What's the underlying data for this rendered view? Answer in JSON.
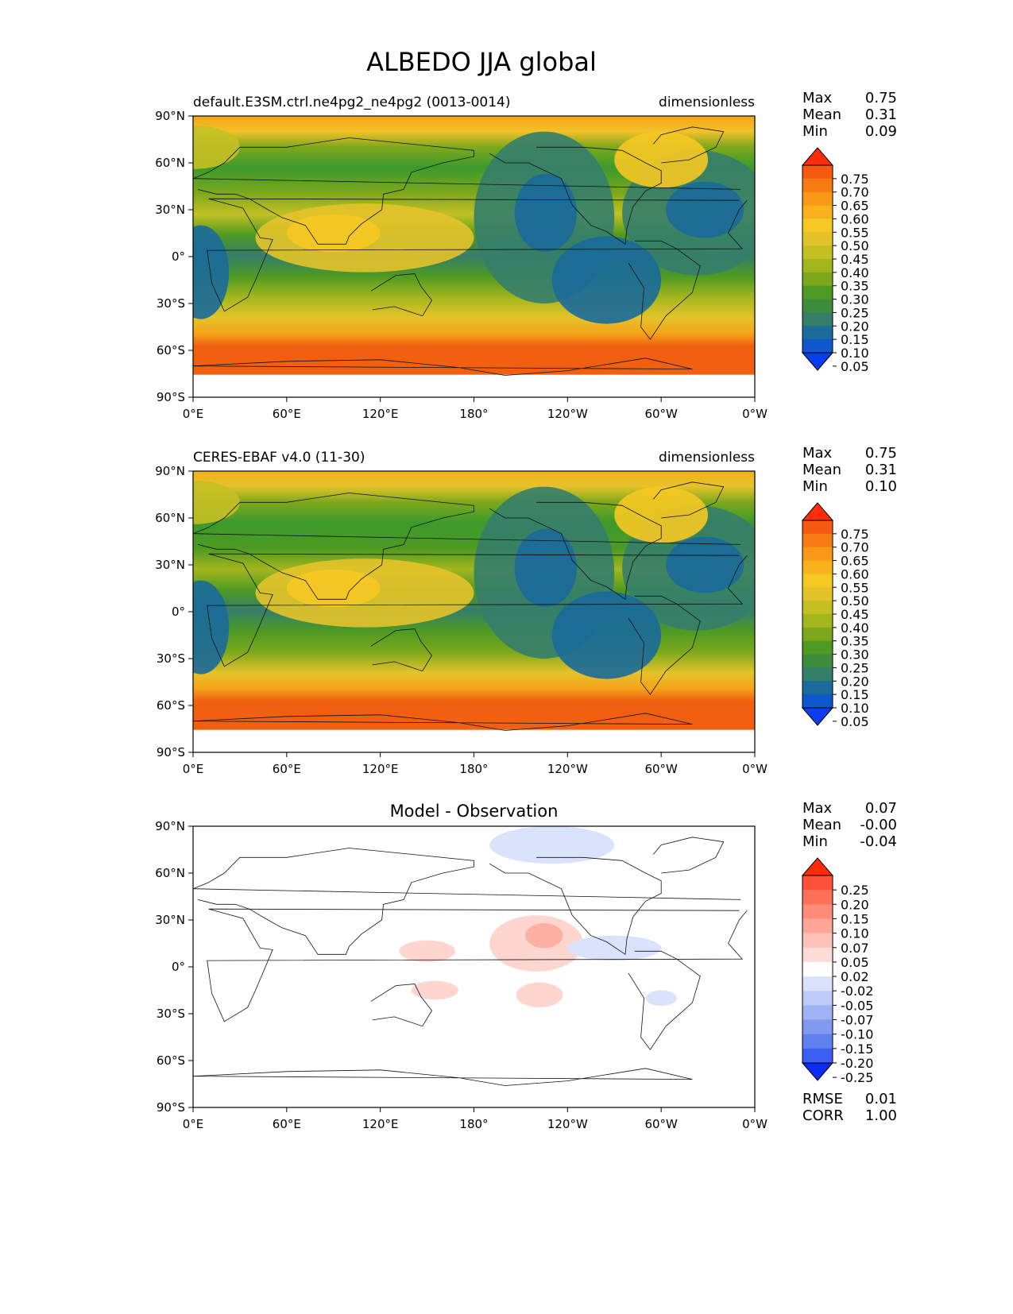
{
  "figure_title": "ALBEDO JJA global",
  "colors": {
    "ocean_teal": "#2f7d78",
    "mid_green": "#3c9a2c",
    "yellow_green": "#b8c223",
    "yellow": "#f2c22a",
    "orange": "#f59a12",
    "red_orange": "#f06010",
    "diff_red": "#ff9a8c",
    "diff_blue": "#a9bdf5"
  },
  "chart_data": [
    {
      "type": "heatmap",
      "title": "default.E3SM.ctrl.ne4pg2_ne4pg2 (0013-0014)",
      "units": "dimensionless",
      "xlim": [
        0,
        360
      ],
      "ylim": [
        -90,
        90
      ],
      "x_ticks": [
        "0°E",
        "60°E",
        "120°E",
        "180°",
        "120°W",
        "60°W",
        "0°W"
      ],
      "y_ticks": [
        "90°N",
        "60°N",
        "30°N",
        "0°",
        "30°S",
        "60°S",
        "90°S"
      ],
      "stats": [
        {
          "label": "Max",
          "value": "0.75"
        },
        {
          "label": "Mean",
          "value": "0.31"
        },
        {
          "label": "Min",
          "value": "0.09"
        }
      ],
      "colorbar": {
        "labels": [
          "0.75",
          "0.70",
          "0.65",
          "0.60",
          "0.55",
          "0.50",
          "0.45",
          "0.40",
          "0.35",
          "0.30",
          "0.25",
          "0.20",
          "0.15",
          "0.10",
          "0.05"
        ],
        "colors": [
          "#ff2d0a",
          "#f65a10",
          "#f77a12",
          "#f89a18",
          "#f9b21c",
          "#f6c822",
          "#e4c32a",
          "#c4c024",
          "#a4b61e",
          "#7ea81c",
          "#4e9a22",
          "#3c8c3c",
          "#357e6a",
          "#1a6a9a",
          "#0c58cc",
          "#0a3cf0"
        ]
      }
    },
    {
      "type": "heatmap",
      "title": "CERES-EBAF v4.0 (11-30)",
      "units": "dimensionless",
      "xlim": [
        0,
        360
      ],
      "ylim": [
        -90,
        90
      ],
      "x_ticks": [
        "0°E",
        "60°E",
        "120°E",
        "180°",
        "120°W",
        "60°W",
        "0°W"
      ],
      "y_ticks": [
        "90°N",
        "60°N",
        "30°N",
        "0°",
        "30°S",
        "60°S",
        "90°S"
      ],
      "stats": [
        {
          "label": "Max",
          "value": "0.75"
        },
        {
          "label": "Mean",
          "value": "0.31"
        },
        {
          "label": "Min",
          "value": "0.10"
        }
      ],
      "colorbar": {
        "labels": [
          "0.75",
          "0.70",
          "0.65",
          "0.60",
          "0.55",
          "0.50",
          "0.45",
          "0.40",
          "0.35",
          "0.30",
          "0.25",
          "0.20",
          "0.15",
          "0.10",
          "0.05"
        ],
        "colors": [
          "#ff2d0a",
          "#f65a10",
          "#f77a12",
          "#f89a18",
          "#f9b21c",
          "#f6c822",
          "#e4c32a",
          "#c4c024",
          "#a4b61e",
          "#7ea81c",
          "#4e9a22",
          "#3c8c3c",
          "#357e6a",
          "#1a6a9a",
          "#0c58cc",
          "#0a3cf0"
        ]
      }
    },
    {
      "type": "heatmap",
      "title": "Model - Observation",
      "units": "",
      "xlim": [
        0,
        360
      ],
      "ylim": [
        -90,
        90
      ],
      "x_ticks": [
        "0°E",
        "60°E",
        "120°E",
        "180°",
        "120°W",
        "60°W",
        "0°W"
      ],
      "y_ticks": [
        "90°N",
        "60°N",
        "30°N",
        "0°",
        "30°S",
        "60°S",
        "90°S"
      ],
      "stats": [
        {
          "label": "Max",
          "value": "0.07"
        },
        {
          "label": "Mean",
          "value": "-0.00"
        },
        {
          "label": "Min",
          "value": "-0.04"
        }
      ],
      "extra_stats": [
        {
          "label": "RMSE",
          "value": "0.01"
        },
        {
          "label": "CORR",
          "value": "1.00"
        }
      ],
      "colorbar": {
        "labels": [
          "0.25",
          "0.20",
          "0.15",
          "0.10",
          "0.07",
          "0.05",
          "0.02",
          "-0.02",
          "-0.05",
          "-0.07",
          "-0.10",
          "-0.15",
          "-0.20",
          "-0.25"
        ],
        "colors": [
          "#ff2a0a",
          "#ff503a",
          "#ff7058",
          "#ff8c78",
          "#ffa698",
          "#ffc2b8",
          "#ffdcd6",
          "#ffffff",
          "#dbe2fb",
          "#bccbf7",
          "#9fb2f3",
          "#8099ef",
          "#6080ee",
          "#3a5ef0",
          "#0a2af8"
        ]
      }
    }
  ]
}
